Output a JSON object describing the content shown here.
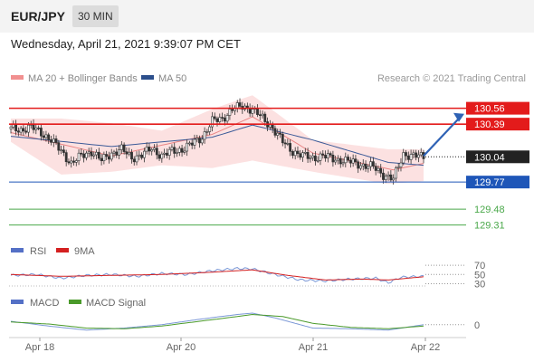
{
  "header": {
    "symbol": "EUR/JPY",
    "timeframe": "30 MIN",
    "datetime": "Wednesday, April 21, 2021 9:39:07 PM CET"
  },
  "main_chart": {
    "legend": [
      {
        "label": "MA 20 + Bollinger Bands",
        "color": "#f19090"
      },
      {
        "label": "MA 50",
        "color": "#2c4f8c"
      }
    ],
    "copyright": "Research © 2021 Trading Central"
  },
  "chart_data": [
    {
      "type": "candlestick",
      "title": "EUR/JPY",
      "x_ticks": [
        "Apr 18",
        "Apr 20",
        "Apr 21",
        "Apr 22"
      ],
      "ylim": [
        129.2,
        130.75
      ],
      "close_points": [
        [
          0,
          130.34
        ],
        [
          4,
          130.33
        ],
        [
          8,
          130.36
        ],
        [
          12,
          130.3
        ],
        [
          16,
          130.22
        ],
        [
          20,
          130.1
        ],
        [
          24,
          129.97
        ],
        [
          28,
          130.05
        ],
        [
          32,
          130.1
        ],
        [
          36,
          130.0
        ],
        [
          40,
          130.08
        ],
        [
          44,
          130.12
        ],
        [
          48,
          130.03
        ],
        [
          52,
          130.06
        ],
        [
          56,
          130.13
        ],
        [
          60,
          130.05
        ],
        [
          64,
          130.1
        ],
        [
          68,
          130.12
        ],
        [
          72,
          130.18
        ],
        [
          76,
          130.25
        ],
        [
          80,
          130.42
        ],
        [
          84,
          130.45
        ],
        [
          88,
          130.55
        ],
        [
          92,
          130.58
        ],
        [
          96,
          130.55
        ],
        [
          100,
          130.45
        ],
        [
          104,
          130.35
        ],
        [
          108,
          130.2
        ],
        [
          112,
          130.1
        ],
        [
          116,
          130.05
        ],
        [
          120,
          130.03
        ],
        [
          124,
          130.05
        ],
        [
          128,
          130.02
        ],
        [
          132,
          130.0
        ],
        [
          136,
          129.98
        ],
        [
          140,
          129.95
        ],
        [
          144,
          129.93
        ],
        [
          148,
          129.85
        ],
        [
          152,
          129.8
        ],
        [
          156,
          130.07
        ],
        [
          160,
          130.05
        ],
        [
          164,
          130.04
        ]
      ],
      "ma20_points": [
        [
          0,
          130.3
        ],
        [
          40,
          130.05
        ],
        [
          80,
          130.28
        ],
        [
          96,
          130.47
        ],
        [
          120,
          130.08
        ],
        [
          152,
          129.9
        ],
        [
          164,
          129.97
        ]
      ],
      "ma50_points": [
        [
          0,
          130.26
        ],
        [
          40,
          130.15
        ],
        [
          80,
          130.25
        ],
        [
          96,
          130.38
        ],
        [
          120,
          130.22
        ],
        [
          150,
          129.98
        ],
        [
          164,
          129.95
        ]
      ],
      "bollinger_band": {
        "upper_points": [
          [
            0,
            130.45
          ],
          [
            20,
            130.45
          ],
          [
            40,
            130.4
          ],
          [
            60,
            130.32
          ],
          [
            80,
            130.55
          ],
          [
            96,
            130.7
          ],
          [
            120,
            130.22
          ],
          [
            150,
            130.12
          ],
          [
            164,
            130.12
          ]
        ],
        "lower_points": [
          [
            0,
            130.2
          ],
          [
            20,
            129.85
          ],
          [
            40,
            129.88
          ],
          [
            60,
            129.95
          ],
          [
            80,
            129.92
          ],
          [
            96,
            130.0
          ],
          [
            120,
            129.88
          ],
          [
            150,
            129.75
          ],
          [
            164,
            129.78
          ]
        ]
      },
      "levels": [
        {
          "value": 130.56,
          "label": "130.56",
          "color": "#e31b1b",
          "style": "solid",
          "label_style": "box"
        },
        {
          "value": 130.39,
          "label": "130.39",
          "color": "#e31b1b",
          "style": "solid",
          "label_style": "box"
        },
        {
          "value": 130.04,
          "label": "130.04",
          "color": "#222222",
          "style": "dotted",
          "label_style": "box"
        },
        {
          "value": 129.77,
          "label": "129.77",
          "color": "#1e56b8",
          "style": "solid",
          "label_style": "box"
        },
        {
          "value": 129.48,
          "label": "129.48",
          "color": "#4aa84a",
          "style": "solid",
          "label_style": "text"
        },
        {
          "value": 129.31,
          "label": "129.31",
          "color": "#4aa84a",
          "style": "solid",
          "label_style": "text"
        }
      ],
      "arrow": {
        "from": [
          164,
          130.05
        ],
        "to": [
          180,
          130.5
        ],
        "color": "#2f62b5"
      }
    },
    {
      "type": "line",
      "title": "RSI",
      "legend": [
        {
          "label": "RSI",
          "color": "#5470c6"
        },
        {
          "label": "9MA",
          "color": "#d42020"
        }
      ],
      "ylim": [
        25,
        80
      ],
      "y_ticks": [
        "70",
        "50",
        "30"
      ],
      "series": [
        {
          "name": "RSI",
          "color": "#7a97d6",
          "points": [
            [
              0,
              48
            ],
            [
              10,
              50
            ],
            [
              20,
              42
            ],
            [
              30,
              48
            ],
            [
              40,
              50
            ],
            [
              50,
              46
            ],
            [
              60,
              52
            ],
            [
              70,
              50
            ],
            [
              80,
              58
            ],
            [
              90,
              63
            ],
            [
              96,
              62
            ],
            [
              105,
              50
            ],
            [
              115,
              38
            ],
            [
              125,
              36
            ],
            [
              135,
              40
            ],
            [
              145,
              42
            ],
            [
              150,
              32
            ],
            [
              155,
              44
            ],
            [
              164,
              46
            ]
          ]
        },
        {
          "name": "9MA",
          "color": "#d42020",
          "points": [
            [
              0,
              50
            ],
            [
              20,
              46
            ],
            [
              40,
              48
            ],
            [
              60,
              50
            ],
            [
              80,
              55
            ],
            [
              96,
              60
            ],
            [
              110,
              48
            ],
            [
              125,
              38
            ],
            [
              140,
              40
            ],
            [
              150,
              38
            ],
            [
              164,
              45
            ]
          ]
        }
      ]
    },
    {
      "type": "line",
      "title": "MACD",
      "legend": [
        {
          "label": "MACD",
          "color": "#5470c6"
        },
        {
          "label": "MACD Signal",
          "color": "#4a9a2a"
        }
      ],
      "ylim": [
        -0.15,
        0.25
      ],
      "y_ticks": [
        "0"
      ],
      "series": [
        {
          "name": "MACD",
          "color": "#7a97d6",
          "points": [
            [
              0,
              0.05
            ],
            [
              15,
              -0.02
            ],
            [
              30,
              -0.08
            ],
            [
              45,
              -0.05
            ],
            [
              60,
              0.0
            ],
            [
              75,
              0.08
            ],
            [
              90,
              0.15
            ],
            [
              96,
              0.17
            ],
            [
              105,
              0.1
            ],
            [
              120,
              -0.05
            ],
            [
              135,
              -0.06
            ],
            [
              150,
              -0.08
            ],
            [
              164,
              0.0
            ]
          ]
        },
        {
          "name": "MACD Signal",
          "color": "#4a9a2a",
          "points": [
            [
              0,
              0.04
            ],
            [
              15,
              0.01
            ],
            [
              30,
              -0.05
            ],
            [
              45,
              -0.06
            ],
            [
              60,
              -0.02
            ],
            [
              75,
              0.05
            ],
            [
              90,
              0.12
            ],
            [
              96,
              0.15
            ],
            [
              108,
              0.12
            ],
            [
              120,
              0.02
            ],
            [
              135,
              -0.04
            ],
            [
              150,
              -0.06
            ],
            [
              164,
              -0.02
            ]
          ]
        }
      ]
    }
  ]
}
